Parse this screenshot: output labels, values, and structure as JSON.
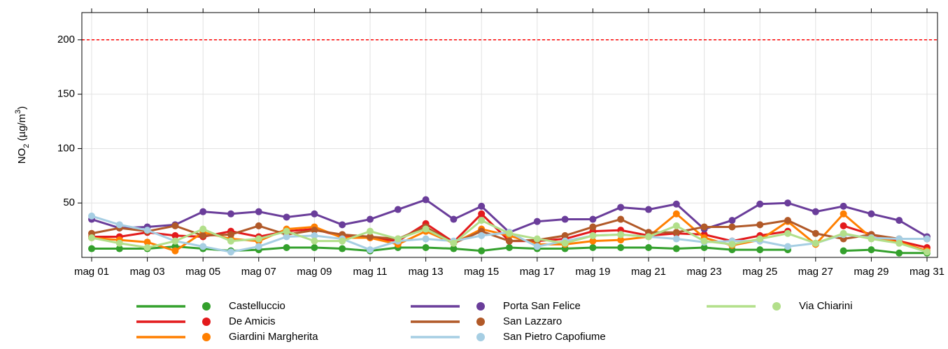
{
  "chart_data": {
    "type": "line",
    "ylabel": [
      "NO",
      "2",
      " (µg/m",
      "3",
      ")"
    ],
    "categories": [
      "mag 01",
      null,
      "mag 03",
      null,
      "mag 05",
      null,
      "mag 07",
      null,
      "mag 09",
      null,
      "mag 11",
      null,
      "mag 13",
      null,
      "mag 15",
      null,
      "mag 17",
      null,
      "mag 19",
      null,
      "mag 21",
      null,
      "mag 23",
      null,
      "mag 25",
      null,
      "mag 27",
      null,
      "mag 29",
      null,
      "mag 31"
    ],
    "ylim": [
      0,
      225
    ],
    "yticks": [
      50,
      100,
      150,
      200
    ],
    "grid": true,
    "reference_line": {
      "value": 200,
      "color": "#ff0000"
    },
    "series": [
      {
        "name": "Castelluccio",
        "color": "#33a02c",
        "values": [
          8,
          8,
          8,
          10,
          8,
          6,
          7,
          9,
          9,
          8,
          6,
          9,
          9,
          8,
          6,
          9,
          8,
          8,
          9,
          9,
          9,
          8,
          9,
          7,
          7,
          7,
          null,
          6,
          7,
          4,
          4
        ]
      },
      {
        "name": "De Amicis",
        "color": "#e31a1c",
        "values": [
          19,
          19,
          23,
          20,
          19,
          24,
          19,
          24,
          26,
          19,
          18,
          15,
          31,
          14,
          40,
          15,
          15,
          17,
          24,
          25,
          20,
          22,
          21,
          15,
          20,
          24,
          null,
          29,
          21,
          15,
          9
        ]
      },
      {
        "name": "Giardini Margherita",
        "color": "#ff7f00",
        "values": [
          18,
          16,
          14,
          6,
          23,
          17,
          15,
          26,
          28,
          18,
          18,
          12,
          24,
          13,
          26,
          20,
          12,
          12,
          15,
          16,
          19,
          40,
          18,
          11,
          16,
          33,
          12,
          40,
          18,
          14,
          6
        ]
      },
      {
        "name": "Porta San Felice",
        "color": "#6a3d9a",
        "values": [
          35,
          27,
          28,
          30,
          42,
          40,
          42,
          37,
          40,
          30,
          35,
          44,
          53,
          35,
          47,
          23,
          33,
          35,
          35,
          46,
          44,
          49,
          26,
          34,
          49,
          50,
          42,
          47,
          40,
          34,
          19
        ]
      },
      {
        "name": "San Lazzaro",
        "color": "#b15928",
        "values": [
          22,
          27,
          24,
          29,
          20,
          21,
          29,
          21,
          25,
          21,
          19,
          17,
          28,
          13,
          24,
          15,
          16,
          20,
          28,
          35,
          23,
          23,
          28,
          28,
          30,
          34,
          22,
          17,
          21,
          17,
          17
        ]
      },
      {
        "name": "San Pietro Capofiume",
        "color": "#a6cee3",
        "values": [
          38,
          30,
          25,
          15,
          10,
          5,
          10,
          19,
          20,
          17,
          7,
          15,
          17,
          15,
          20,
          23,
          10,
          15,
          20,
          21,
          19,
          17,
          14,
          15,
          15,
          10,
          13,
          21,
          18,
          17,
          17
        ]
      },
      {
        "name": "Via Chiarini",
        "color": "#b2df8a",
        "values": [
          18,
          13,
          9,
          15,
          26,
          15,
          17,
          24,
          15,
          15,
          24,
          17,
          26,
          13,
          34,
          22,
          17,
          13,
          20,
          21,
          19,
          29,
          15,
          12,
          17,
          22,
          13,
          22,
          17,
          13,
          5
        ]
      }
    ]
  }
}
